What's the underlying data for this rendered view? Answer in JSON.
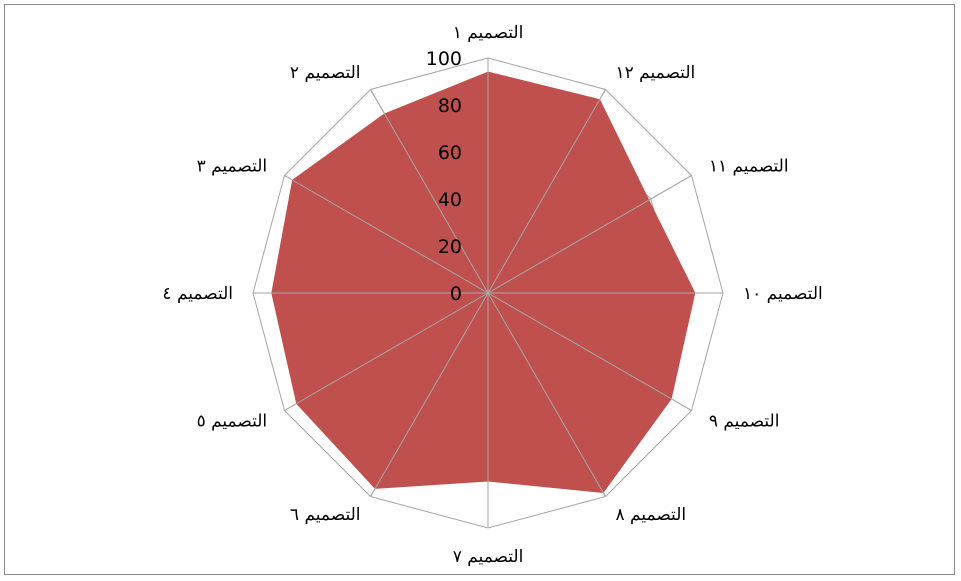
{
  "chart_data": {
    "type": "radar",
    "title": "",
    "categories": [
      "التصميم ١",
      "التصميم ١٢",
      "التصميم ١١",
      "التصميم ١٠",
      "التصميم ٩",
      "التصميم ٨",
      "التصميم ٧",
      "التصميم ٦",
      "التصميم ٥",
      "التصميم ٤",
      "التصميم ٣",
      "التصميم ٢"
    ],
    "series": [
      {
        "values": [
          94,
          95,
          79,
          88,
          90,
          98,
          80,
          96,
          94,
          92,
          96,
          88
        ]
      }
    ],
    "rlim": [
      0,
      100
    ],
    "ticks": [
      "0",
      "20",
      "40",
      "60",
      "80",
      "100"
    ],
    "grid": true,
    "legend": "none",
    "colors": {
      "fill": "#c0504d",
      "grid": "#a6a6a6"
    }
  }
}
